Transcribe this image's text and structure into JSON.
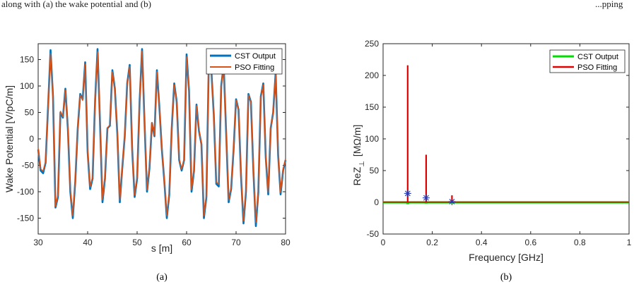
{
  "header_line": {
    "left": "along with (a) the wake potential and (b)",
    "right": "...pping"
  },
  "chart_data": [
    {
      "type": "line",
      "caption": "(a)",
      "xlabel": "s [m]",
      "ylabel": "Wake Potential [V/pC/m]",
      "xlim": [
        30,
        80
      ],
      "ylim": [
        -180,
        180
      ],
      "xticks": [
        30,
        40,
        50,
        60,
        70,
        80
      ],
      "yticks": [
        -150,
        -100,
        -50,
        0,
        50,
        100,
        150
      ],
      "grid": false,
      "legend_position": "top-right",
      "series": [
        {
          "name": "CST Output",
          "color": "#0072BD",
          "x": [
            30,
            30.5,
            31,
            31.5,
            32,
            32.5,
            33,
            33.5,
            34,
            34.5,
            35,
            35.5,
            36,
            36.5,
            37,
            37.5,
            38,
            38.5,
            39,
            39.5,
            40,
            40.5,
            41,
            41.5,
            42,
            42.5,
            43,
            43.5,
            44,
            44.5,
            45,
            45.5,
            46,
            46.5,
            47,
            47.5,
            48,
            48.5,
            49,
            49.5,
            50,
            50.5,
            51,
            51.5,
            52,
            52.5,
            53,
            53.5,
            54,
            54.5,
            55,
            55.5,
            56,
            56.5,
            57,
            57.5,
            58,
            58.5,
            59,
            59.5,
            60,
            60.5,
            61,
            61.5,
            62,
            62.5,
            63,
            63.5,
            64,
            64.5,
            65,
            65.5,
            66,
            66.5,
            67,
            67.5,
            68,
            68.5,
            69,
            69.5,
            70,
            70.5,
            71,
            71.5,
            72,
            72.5,
            73,
            73.5,
            74,
            74.5,
            75,
            75.5,
            76,
            76.5,
            77,
            77.5,
            78,
            78.5,
            79,
            79.5,
            80
          ],
          "y": [
            -20,
            -60,
            -65,
            -45,
            60,
            168,
            80,
            -130,
            -110,
            50,
            40,
            95,
            20,
            -100,
            -150,
            -80,
            20,
            85,
            75,
            145,
            -25,
            -95,
            -75,
            70,
            170,
            30,
            -120,
            -75,
            20,
            25,
            130,
            95,
            10,
            -120,
            -55,
            5,
            105,
            140,
            -20,
            -110,
            -75,
            70,
            170,
            30,
            -100,
            -55,
            30,
            5,
            130,
            60,
            -20,
            -80,
            -150,
            -105,
            20,
            105,
            70,
            -40,
            -60,
            -40,
            160,
            90,
            -100,
            -60,
            65,
            15,
            -10,
            -150,
            -110,
            150,
            130,
            45,
            -85,
            -90,
            100,
            140,
            10,
            -120,
            -95,
            -20,
            75,
            55,
            -70,
            -160,
            -100,
            85,
            70,
            -60,
            -165,
            -100,
            80,
            105,
            -35,
            -105,
            20,
            50,
            125,
            -30,
            -105,
            -60,
            -40
          ]
        },
        {
          "name": "PSO Fitting",
          "color": "#D95319",
          "x": [
            30,
            30.5,
            31,
            31.5,
            32,
            32.5,
            33,
            33.5,
            34,
            34.5,
            35,
            35.5,
            36,
            36.5,
            37,
            37.5,
            38,
            38.5,
            39,
            39.5,
            40,
            40.5,
            41,
            41.5,
            42,
            42.5,
            43,
            43.5,
            44,
            44.5,
            45,
            45.5,
            46,
            46.5,
            47,
            47.5,
            48,
            48.5,
            49,
            49.5,
            50,
            50.5,
            51,
            51.5,
            52,
            52.5,
            53,
            53.5,
            54,
            54.5,
            55,
            55.5,
            56,
            56.5,
            57,
            57.5,
            58,
            58.5,
            59,
            59.5,
            60,
            60.5,
            61,
            61.5,
            62,
            62.5,
            63,
            63.5,
            64,
            64.5,
            65,
            65.5,
            66,
            66.5,
            67,
            67.5,
            68,
            68.5,
            69,
            69.5,
            70,
            70.5,
            71,
            71.5,
            72,
            72.5,
            73,
            73.5,
            74,
            74.5,
            75,
            75.5,
            76,
            76.5,
            77,
            77.5,
            78,
            78.5,
            79,
            79.5,
            80
          ],
          "y": [
            -18,
            -57,
            -61,
            -43,
            58,
            162,
            78,
            -127,
            -106,
            52,
            42,
            92,
            22,
            -96,
            -145,
            -77,
            22,
            83,
            73,
            141,
            -23,
            -91,
            -72,
            68,
            165,
            31,
            -115,
            -72,
            21,
            26,
            127,
            93,
            12,
            -116,
            -53,
            6,
            102,
            137,
            -19,
            -106,
            -72,
            68,
            166,
            31,
            -96,
            -52,
            31,
            7,
            127,
            59,
            -18,
            -77,
            -145,
            -101,
            21,
            102,
            68,
            -38,
            -57,
            -38,
            155,
            88,
            -96,
            -57,
            63,
            17,
            -8,
            -145,
            -106,
            146,
            127,
            44,
            -82,
            -86,
            97,
            137,
            12,
            -116,
            -92,
            -18,
            73,
            54,
            -67,
            -155,
            -96,
            83,
            68,
            -57,
            -158,
            -96,
            78,
            102,
            -33,
            -101,
            21,
            49,
            122,
            -28,
            -101,
            -57,
            -38
          ]
        }
      ]
    },
    {
      "type": "line",
      "caption": "(b)",
      "xlabel": "Frequency [GHz]",
      "ylabel": "ReZ",
      "ylabel_subscript": "⊥",
      "ylabel_unit": "[MΩ/m]",
      "xlim": [
        0,
        1
      ],
      "ylim": [
        -50,
        250
      ],
      "xticks": [
        0,
        0.2,
        0.4,
        0.6,
        0.8,
        1
      ],
      "yticks": [
        -50,
        0,
        50,
        100,
        150,
        200,
        250
      ],
      "grid": false,
      "legend_position": "top-right",
      "series": [
        {
          "name": "CST Output",
          "color": "#00DD00",
          "baseline": 0,
          "peaks": [
            {
              "f": 0.1,
              "value": -3
            },
            {
              "f": 0.175,
              "value": -2
            }
          ]
        },
        {
          "name": "PSO Fitting",
          "color": "#E00000",
          "baseline": 0,
          "peaks": [
            {
              "f": 0.1,
              "value": 216
            },
            {
              "f": 0.175,
              "value": 75
            },
            {
              "f": 0.28,
              "value": 11
            }
          ]
        }
      ],
      "markers": [
        {
          "f": 0.1,
          "value": 14,
          "symbol": "star",
          "color": "#1F3BB5"
        },
        {
          "f": 0.175,
          "value": 7,
          "symbol": "star",
          "color": "#1F3BB5"
        },
        {
          "f": 0.28,
          "value": 1,
          "symbol": "star",
          "color": "#1F3BB5"
        }
      ]
    }
  ]
}
